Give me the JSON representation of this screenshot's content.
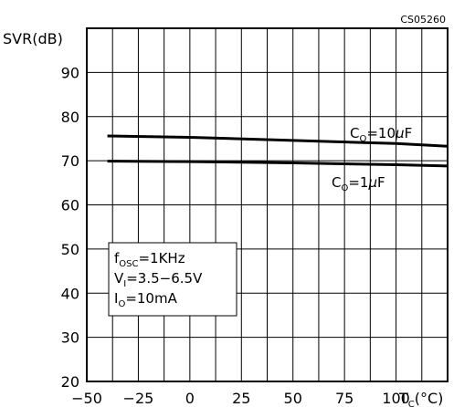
{
  "chart_data": {
    "type": "line",
    "title": "",
    "figure_code": "CS05260",
    "xlabel_main": "T",
    "xlabel_sub": "C",
    "xlabel_unit": "(°C)",
    "ylabel": "SVR(dB)",
    "xlim": [
      -50,
      125
    ],
    "ylim": [
      20,
      100
    ],
    "x_ticks": [
      -50,
      -25,
      0,
      25,
      50,
      75,
      100
    ],
    "x_tick_labels": [
      "−50",
      "−25",
      "0",
      "25",
      "50",
      "75",
      "100"
    ],
    "y_ticks": [
      20,
      30,
      40,
      50,
      60,
      70,
      80,
      90
    ],
    "y_tick_labels": [
      "20",
      "30",
      "40",
      "50",
      "60",
      "70",
      "80",
      "90"
    ],
    "x_minor_step": 12.5,
    "y_minor_step": 10,
    "grid": true,
    "series": [
      {
        "name_main": "C",
        "name_sub": "O",
        "name_rest": "=10",
        "name_unit": "μF",
        "x": [
          -40,
          0,
          50,
          100,
          125
        ],
        "y": [
          75.6,
          75.3,
          74.6,
          73.9,
          73.3
        ]
      },
      {
        "name_main": "C",
        "name_sub": "O",
        "name_rest": "=1",
        "name_unit": "μF",
        "x": [
          -40,
          0,
          50,
          100,
          125
        ],
        "y": [
          69.9,
          69.8,
          69.5,
          69.1,
          68.8
        ]
      }
    ],
    "conditions": [
      {
        "main": "f",
        "sub": "OSC",
        "rest": "=1KHz"
      },
      {
        "main": "V",
        "sub": "I",
        "rest": "=3.5−6.5V"
      },
      {
        "main": "I",
        "sub": "O",
        "rest": "=10mA"
      }
    ]
  }
}
